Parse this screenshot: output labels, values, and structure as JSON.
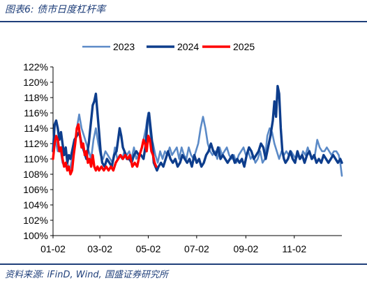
{
  "header": {
    "title": "图表6:  债市日度杠杆率"
  },
  "footer": {
    "source": "资料来源:  iFinD,  Wind,  国盛证券研究所"
  },
  "chart_data": {
    "type": "line",
    "title": "",
    "xlabel": "",
    "ylabel": "",
    "x_ticks": [
      "01-02",
      "03-02",
      "05-02",
      "07-02",
      "09-02",
      "11-02"
    ],
    "x_tick_days": [
      0,
      59,
      120,
      181,
      243,
      304
    ],
    "x_range_days": [
      0,
      364
    ],
    "y_ticks": [
      "100%",
      "102%",
      "104%",
      "106%",
      "108%",
      "110%",
      "112%",
      "114%",
      "116%",
      "118%",
      "120%",
      "122%"
    ],
    "ylim": [
      100,
      122
    ],
    "y_unit": "%",
    "grid": false,
    "legend_position": "top",
    "series": [
      {
        "name": "2023",
        "color": "#5b8ac7",
        "points": [
          [
            0,
            111.0
          ],
          [
            3,
            112.5
          ],
          [
            6,
            111.0
          ],
          [
            9,
            111.5
          ],
          [
            12,
            109.5
          ],
          [
            15,
            109.0
          ],
          [
            18,
            109.5
          ],
          [
            21,
            108.5
          ],
          [
            24,
            110.0
          ],
          [
            27,
            111.5
          ],
          [
            30,
            114.0
          ],
          [
            33,
            115.8
          ],
          [
            36,
            114.0
          ],
          [
            39,
            113.0
          ],
          [
            42,
            112.0
          ],
          [
            45,
            111.0
          ],
          [
            48,
            110.0
          ],
          [
            51,
            112.5
          ],
          [
            54,
            114.0
          ],
          [
            57,
            112.0
          ],
          [
            60,
            110.5
          ],
          [
            63,
            110.0
          ],
          [
            66,
            111.0
          ],
          [
            69,
            110.5
          ],
          [
            72,
            110.0
          ],
          [
            75,
            109.5
          ],
          [
            78,
            111.5
          ],
          [
            81,
            110.0
          ],
          [
            84,
            110.5
          ],
          [
            87,
            110.0
          ],
          [
            90,
            111.0
          ],
          [
            93,
            110.5
          ],
          [
            96,
            111.0
          ],
          [
            99,
            110.0
          ],
          [
            102,
            111.5
          ],
          [
            105,
            110.0
          ],
          [
            108,
            110.5
          ],
          [
            111,
            111.0
          ],
          [
            114,
            112.5
          ],
          [
            117,
            114.0
          ],
          [
            120,
            116.0
          ],
          [
            123,
            113.0
          ],
          [
            126,
            112.0
          ],
          [
            129,
            110.5
          ],
          [
            132,
            109.5
          ],
          [
            135,
            111.0
          ],
          [
            138,
            110.0
          ],
          [
            141,
            111.0
          ],
          [
            144,
            110.5
          ],
          [
            147,
            111.5
          ],
          [
            150,
            110.5
          ],
          [
            153,
            111.0
          ],
          [
            156,
            111.5
          ],
          [
            159,
            110.0
          ],
          [
            162,
            111.5
          ],
          [
            165,
            110.5
          ],
          [
            168,
            110.0
          ],
          [
            171,
            111.5
          ],
          [
            174,
            110.5
          ],
          [
            177,
            110.0
          ],
          [
            180,
            111.0
          ],
          [
            183,
            112.0
          ],
          [
            186,
            114.0
          ],
          [
            189,
            115.5
          ],
          [
            192,
            114.0
          ],
          [
            195,
            112.0
          ],
          [
            198,
            111.0
          ],
          [
            201,
            110.5
          ],
          [
            204,
            111.0
          ],
          [
            207,
            110.0
          ],
          [
            210,
            111.5
          ],
          [
            213,
            110.5
          ],
          [
            216,
            111.0
          ],
          [
            219,
            111.5
          ],
          [
            222,
            110.5
          ],
          [
            225,
            110.0
          ],
          [
            228,
            110.5
          ],
          [
            231,
            109.5
          ],
          [
            234,
            110.5
          ],
          [
            237,
            111.0
          ],
          [
            240,
            111.5
          ],
          [
            243,
            110.5
          ],
          [
            246,
            111.0
          ],
          [
            249,
            110.0
          ],
          [
            252,
            110.5
          ],
          [
            255,
            109.5
          ],
          [
            258,
            110.0
          ],
          [
            261,
            111.0
          ],
          [
            264,
            109.5
          ],
          [
            267,
            110.0
          ],
          [
            270,
            113.0
          ],
          [
            273,
            114.0
          ],
          [
            276,
            113.5
          ],
          [
            279,
            112.0
          ],
          [
            282,
            111.0
          ],
          [
            285,
            110.0
          ],
          [
            288,
            111.0
          ],
          [
            291,
            110.5
          ],
          [
            294,
            111.0
          ],
          [
            297,
            110.5
          ],
          [
            300,
            111.0
          ],
          [
            303,
            110.5
          ],
          [
            306,
            110.0
          ],
          [
            309,
            110.5
          ],
          [
            312,
            110.0
          ],
          [
            315,
            111.0
          ],
          [
            318,
            110.5
          ],
          [
            321,
            111.5
          ],
          [
            324,
            110.5
          ],
          [
            327,
            110.0
          ],
          [
            330,
            110.5
          ],
          [
            333,
            112.5
          ],
          [
            336,
            111.5
          ],
          [
            339,
            111.0
          ],
          [
            342,
            111.0
          ],
          [
            345,
            111.5
          ],
          [
            348,
            111.0
          ],
          [
            351,
            110.5
          ],
          [
            354,
            111.0
          ],
          [
            357,
            111.0
          ],
          [
            360,
            110.5
          ],
          [
            362,
            109.5
          ],
          [
            364,
            107.8
          ]
        ]
      },
      {
        "name": "2024",
        "color": "#0d3d8c",
        "points": [
          [
            0,
            111.0
          ],
          [
            2,
            114.5
          ],
          [
            4,
            115.0
          ],
          [
            6,
            114.0
          ],
          [
            8,
            112.5
          ],
          [
            10,
            113.5
          ],
          [
            12,
            112.0
          ],
          [
            14,
            110.5
          ],
          [
            16,
            111.5
          ],
          [
            18,
            109.5
          ],
          [
            20,
            110.5
          ],
          [
            22,
            110.0
          ],
          [
            24,
            111.0
          ],
          [
            27,
            112.5
          ],
          [
            30,
            113.0
          ],
          [
            33,
            113.5
          ],
          [
            36,
            112.0
          ],
          [
            39,
            111.0
          ],
          [
            42,
            110.0
          ],
          [
            45,
            112.0
          ],
          [
            48,
            115.0
          ],
          [
            50,
            117.0
          ],
          [
            52,
            117.5
          ],
          [
            54,
            118.5
          ],
          [
            56,
            116.0
          ],
          [
            58,
            113.5
          ],
          [
            60,
            111.0
          ],
          [
            62,
            109.5
          ],
          [
            65,
            109.0
          ],
          [
            68,
            110.0
          ],
          [
            71,
            109.5
          ],
          [
            74,
            109.0
          ],
          [
            77,
            110.5
          ],
          [
            80,
            111.0
          ],
          [
            82,
            112.5
          ],
          [
            84,
            114.0
          ],
          [
            86,
            113.0
          ],
          [
            88,
            111.5
          ],
          [
            90,
            111.0
          ],
          [
            93,
            110.0
          ],
          [
            96,
            110.0
          ],
          [
            99,
            109.5
          ],
          [
            102,
            110.5
          ],
          [
            105,
            111.0
          ],
          [
            108,
            110.5
          ],
          [
            111,
            110.5
          ],
          [
            114,
            110.0
          ],
          [
            117,
            112.0
          ],
          [
            119,
            115.0
          ],
          [
            121,
            116.0
          ],
          [
            123,
            114.0
          ],
          [
            125,
            112.0
          ],
          [
            127,
            109.5
          ],
          [
            129,
            109.0
          ],
          [
            131,
            108.5
          ],
          [
            133,
            109.0
          ],
          [
            136,
            109.5
          ],
          [
            139,
            109.0
          ],
          [
            142,
            110.0
          ],
          [
            145,
            111.0
          ],
          [
            148,
            110.0
          ],
          [
            151,
            109.5
          ],
          [
            154,
            110.0
          ],
          [
            157,
            109.0
          ],
          [
            160,
            109.5
          ],
          [
            163,
            110.5
          ],
          [
            166,
            110.0
          ],
          [
            169,
            109.5
          ],
          [
            172,
            110.0
          ],
          [
            175,
            109.0
          ],
          [
            178,
            110.5
          ],
          [
            181,
            109.5
          ],
          [
            184,
            110.0
          ],
          [
            187,
            109.0
          ],
          [
            190,
            109.5
          ],
          [
            193,
            110.5
          ],
          [
            196,
            111.0
          ],
          [
            199,
            112.0
          ],
          [
            202,
            111.0
          ],
          [
            205,
            110.5
          ],
          [
            208,
            111.5
          ],
          [
            211,
            110.0
          ],
          [
            214,
            110.5
          ],
          [
            217,
            110.0
          ],
          [
            220,
            109.5
          ],
          [
            223,
            110.0
          ],
          [
            226,
            110.5
          ],
          [
            229,
            109.5
          ],
          [
            232,
            110.0
          ],
          [
            235,
            109.5
          ],
          [
            238,
            110.0
          ],
          [
            241,
            109.0
          ],
          [
            244,
            110.5
          ],
          [
            247,
            111.5
          ],
          [
            250,
            111.0
          ],
          [
            253,
            110.0
          ],
          [
            256,
            110.5
          ],
          [
            259,
            111.0
          ],
          [
            262,
            112.0
          ],
          [
            265,
            111.5
          ],
          [
            268,
            110.0
          ],
          [
            271,
            111.5
          ],
          [
            274,
            113.0
          ],
          [
            277,
            115.0
          ],
          [
            279,
            117.5
          ],
          [
            281,
            115.5
          ],
          [
            283,
            119.5
          ],
          [
            285,
            118.5
          ],
          [
            287,
            114.0
          ],
          [
            289,
            111.0
          ],
          [
            291,
            110.0
          ],
          [
            293,
            109.5
          ],
          [
            296,
            110.0
          ],
          [
            299,
            111.0
          ],
          [
            302,
            110.0
          ],
          [
            305,
            109.5
          ],
          [
            308,
            111.0
          ],
          [
            311,
            110.0
          ],
          [
            314,
            110.5
          ],
          [
            317,
            109.5
          ],
          [
            320,
            110.5
          ],
          [
            323,
            111.0
          ],
          [
            326,
            110.0
          ],
          [
            329,
            110.5
          ],
          [
            332,
            109.5
          ],
          [
            335,
            110.0
          ],
          [
            338,
            109.5
          ],
          [
            341,
            110.5
          ],
          [
            344,
            110.0
          ],
          [
            347,
            109.5
          ],
          [
            350,
            110.0
          ],
          [
            353,
            110.5
          ],
          [
            356,
            110.0
          ],
          [
            359,
            109.5
          ],
          [
            362,
            110.0
          ],
          [
            364,
            109.5
          ]
        ]
      },
      {
        "name": "2025",
        "color": "#ff0000",
        "points": [
          [
            0,
            110.0
          ],
          [
            2,
            112.0
          ],
          [
            4,
            113.0
          ],
          [
            6,
            112.5
          ],
          [
            8,
            111.0
          ],
          [
            10,
            111.5
          ],
          [
            12,
            110.0
          ],
          [
            14,
            109.0
          ],
          [
            16,
            109.5
          ],
          [
            18,
            108.5
          ],
          [
            20,
            109.0
          ],
          [
            22,
            108.0
          ],
          [
            24,
            108.5
          ],
          [
            26,
            110.5
          ],
          [
            28,
            112.0
          ],
          [
            30,
            114.0
          ],
          [
            32,
            114.5
          ],
          [
            34,
            113.0
          ],
          [
            36,
            111.5
          ],
          [
            38,
            112.0
          ],
          [
            40,
            110.5
          ],
          [
            42,
            111.0
          ],
          [
            44,
            109.5
          ],
          [
            46,
            110.0
          ],
          [
            48,
            109.0
          ],
          [
            50,
            110.5
          ],
          [
            52,
            109.0
          ],
          [
            54,
            108.5
          ],
          [
            56,
            109.0
          ],
          [
            58,
            108.5
          ],
          [
            61,
            109.0
          ],
          [
            64,
            108.5
          ],
          [
            67,
            109.0
          ],
          [
            70,
            108.5
          ],
          [
            73,
            109.0
          ],
          [
            76,
            108.5
          ],
          [
            79,
            109.5
          ],
          [
            82,
            110.0
          ],
          [
            85,
            110.5
          ],
          [
            88,
            110.0
          ],
          [
            91,
            110.5
          ],
          [
            94,
            110.0
          ],
          [
            97,
            110.5
          ],
          [
            100,
            109.0
          ],
          [
            103,
            109.5
          ],
          [
            106,
            109.0
          ],
          [
            109,
            110.5
          ],
          [
            112,
            111.5
          ],
          [
            114,
            112.5
          ],
          [
            116,
            112.0
          ],
          [
            118,
            111.0
          ],
          [
            120,
            113.0
          ],
          [
            122,
            112.5
          ],
          [
            124,
            111.0
          ],
          [
            126,
            110.5
          ],
          [
            128,
            109.5
          ],
          [
            130,
            109.0
          ]
        ]
      }
    ]
  }
}
